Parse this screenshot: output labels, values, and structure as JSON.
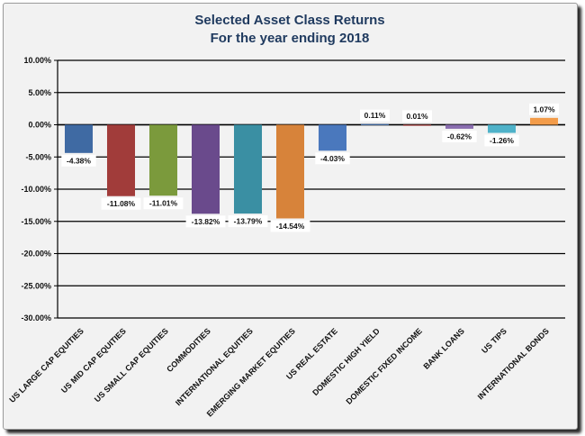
{
  "chart_data": {
    "type": "bar",
    "title": "Selected Asset Class Returns",
    "subtitle": "For the year ending 2018",
    "xlabel": "",
    "ylabel": "",
    "ylim": [
      -30,
      10
    ],
    "y_ticks": [
      "10.00%",
      "5.00%",
      "0.00%",
      "-5.00%",
      "-10.00%",
      "-15.00%",
      "-20.00%",
      "-25.00%",
      "-30.00%"
    ],
    "grid": true,
    "legend": "none",
    "categories": [
      "US LARGE CAP EQUITIES",
      "US MID CAP EQUITIES",
      "US SMALL CAP EQUITIES",
      "COMMODITIES",
      "INTERNATIONAL EQUITIES",
      "EMERGING MARKET EQUITIES",
      "US REAL ESTATE",
      "DOMESTIC HIGH YIELD",
      "DOMESTIC FIXED INCOME",
      "BANK LOANS",
      "US TIPS",
      "INTERNATIONAL BONDS"
    ],
    "values": [
      -4.38,
      -11.08,
      -11.01,
      -13.82,
      -13.79,
      -14.54,
      -4.03,
      0.11,
      0.01,
      -0.62,
      -1.26,
      1.07
    ],
    "data_labels": [
      "-4.38%",
      "-11.08%",
      "-11.01%",
      "-13.82%",
      "-13.79%",
      "-14.54%",
      "-4.03%",
      "0.11%",
      "0.01%",
      "-0.62%",
      "-1.26%",
      "1.07%"
    ],
    "colors": [
      "#3f6aa3",
      "#a13c3a",
      "#7b9a3c",
      "#6a4a8c",
      "#3a8fa3",
      "#d7833a",
      "#4a78bd",
      "#3f6aa3",
      "#a13c3a",
      "#8a6eb0",
      "#4fb2c9",
      "#f39c4a"
    ]
  }
}
